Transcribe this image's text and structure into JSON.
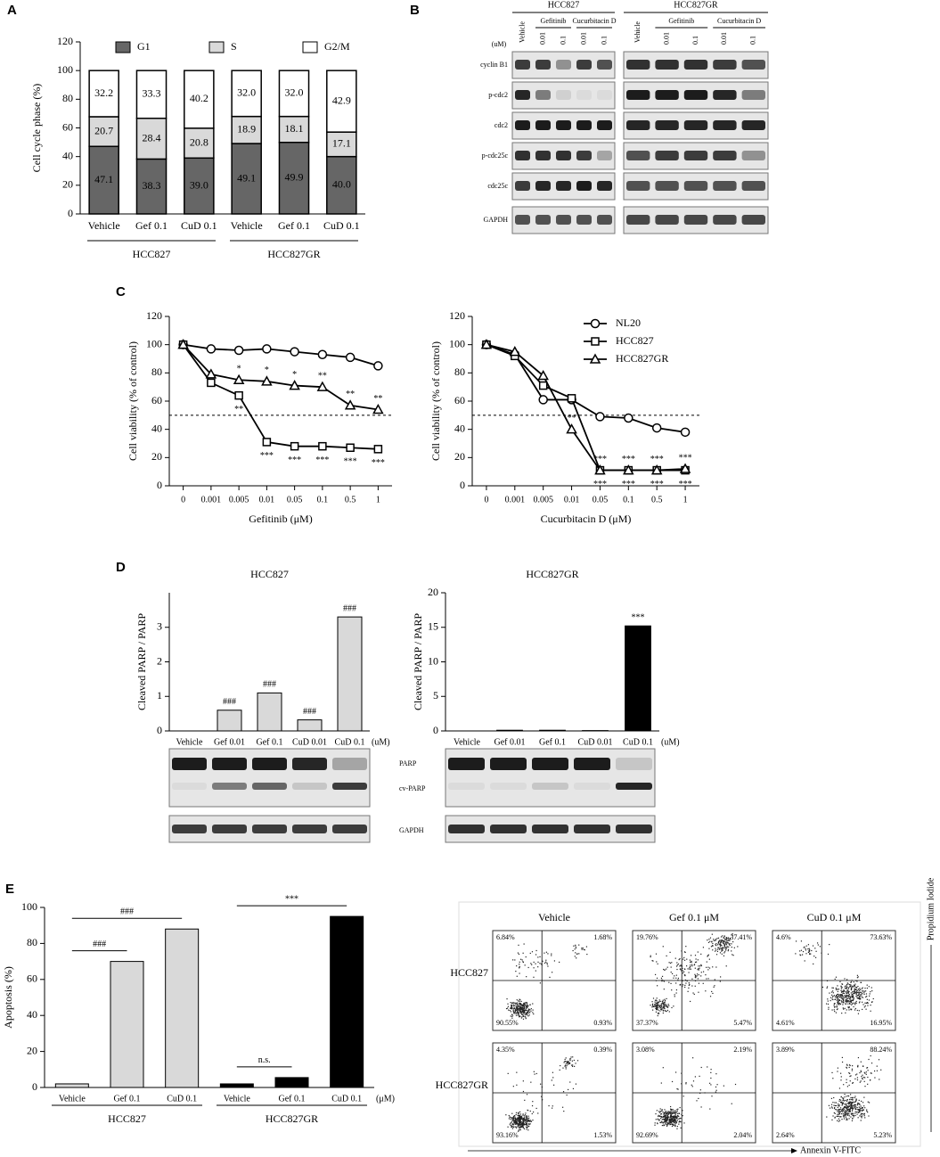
{
  "panels": [
    "A",
    "B",
    "C",
    "D",
    "E"
  ],
  "chart_data": [
    {
      "type": "stacked_bar",
      "ylabel": "Cell cycle phase (%)",
      "categories": [
        "Vehicle",
        "Gef 0.1",
        "CuD 0.1",
        "Vehicle",
        "Gef 0.1",
        "CuD 0.1"
      ],
      "groups": [
        "HCC827",
        "HCC827GR"
      ],
      "ylim": [
        0,
        120
      ],
      "yticks": [
        0,
        20,
        40,
        60,
        80,
        100,
        120
      ],
      "legend": "top",
      "series": [
        {
          "name": "G1",
          "color": "#666666",
          "values": [
            47.1,
            38.3,
            39.0,
            49.1,
            49.9,
            40.0
          ],
          "value_labels": [
            "47.1",
            "38.3",
            "39.0",
            "49.1",
            "49.9",
            "40.0"
          ]
        },
        {
          "name": "S",
          "color": "#d9d9d9",
          "values": [
            20.7,
            28.4,
            20.8,
            18.9,
            18.1,
            17.1
          ],
          "value_labels": [
            "20.7",
            "28.4",
            "20.8",
            "18.9",
            "18.1",
            "17.1"
          ]
        },
        {
          "name": "G2/M",
          "color": "#ffffff",
          "values": [
            32.2,
            33.3,
            40.2,
            32.0,
            32.0,
            42.9
          ],
          "value_labels": [
            "32.2",
            "33.3",
            "40.2",
            "32.0",
            "32.0",
            "42.9"
          ]
        }
      ]
    },
    {
      "type": "line",
      "xlabel": "Gefitinib (μM)",
      "ylabel": "Cell viability (% of control)",
      "categories": [
        "0",
        "0.001",
        "0.005",
        "0.01",
        "0.05",
        "0.1",
        "0.5",
        "1"
      ],
      "ylim": [
        0,
        120
      ],
      "yticks": [
        0,
        20,
        40,
        60,
        80,
        100,
        120
      ],
      "reference_line": 50,
      "series": [
        {
          "marker": "circle",
          "values": [
            100,
            97,
            96,
            97,
            95,
            93,
            91,
            85
          ],
          "annotations": [
            null,
            null,
            null,
            null,
            null,
            null,
            null,
            null
          ]
        },
        {
          "marker": "square",
          "values": [
            100,
            73,
            64,
            31,
            28,
            28,
            27,
            26
          ],
          "annotations": [
            null,
            null,
            "**",
            "***",
            "***",
            "***",
            "***",
            "***"
          ]
        },
        {
          "marker": "triangle",
          "values": [
            100,
            79,
            75,
            74,
            71,
            70,
            57,
            54
          ],
          "annotations": [
            null,
            null,
            "*",
            "*",
            "*",
            "**",
            "**",
            "**"
          ]
        }
      ]
    },
    {
      "type": "line",
      "xlabel": "Cucurbitacin D (μM)",
      "ylabel": "Cell viability (% of control)",
      "categories": [
        "0",
        "0.001",
        "0.005",
        "0.01",
        "0.05",
        "0.1",
        "0.5",
        "1"
      ],
      "ylim": [
        0,
        120
      ],
      "yticks": [
        0,
        20,
        40,
        60,
        80,
        100,
        120
      ],
      "reference_line": 50,
      "legend": "upper right",
      "series": [
        {
          "name": "NL20",
          "marker": "circle",
          "values": [
            100,
            93,
            61,
            61,
            49,
            48,
            41,
            38
          ],
          "annotations": [
            null,
            null,
            null,
            null,
            null,
            null,
            null,
            null
          ]
        },
        {
          "name": "HCC827",
          "marker": "square",
          "values": [
            100,
            92,
            71,
            62,
            11,
            11,
            11,
            11
          ],
          "annotations": [
            null,
            null,
            null,
            null,
            "***",
            "***",
            "***",
            "***"
          ]
        },
        {
          "name": "HCC827GR",
          "marker": "triangle",
          "values": [
            100,
            95,
            78,
            40,
            11,
            11,
            11,
            12
          ],
          "annotations": [
            null,
            null,
            null,
            "**",
            "***",
            "***",
            "***",
            "***"
          ]
        }
      ]
    },
    {
      "type": "bar",
      "title": "HCC827",
      "ylabel": "Cleaved PARP / PARP",
      "unit": "(uM)",
      "categories": [
        "Vehicle",
        "Gef 0.01",
        "Gef 0.1",
        "CuD 0.01",
        "CuD 0.1"
      ],
      "values": [
        0,
        0.6,
        1.1,
        0.32,
        3.3
      ],
      "colors": [
        "#d9d9d9",
        "#d9d9d9",
        "#d9d9d9",
        "#d9d9d9",
        "#d9d9d9"
      ],
      "annotations": [
        null,
        "###",
        "###",
        "###",
        "###"
      ],
      "ylim": [
        0,
        4
      ],
      "yticks": [
        0,
        1,
        2,
        3
      ]
    },
    {
      "type": "bar",
      "title": "HCC827GR",
      "ylabel": "Cleaved PARP / PARP",
      "unit": "(uM)",
      "categories": [
        "Vehicle",
        "Gef 0.01",
        "Gef 0.1",
        "CuD 0.01",
        "CuD 0.1"
      ],
      "values": [
        0,
        0.1,
        0.1,
        0.05,
        15.2
      ],
      "colors": [
        "#d9d9d9",
        "#d9d9d9",
        "#d9d9d9",
        "#d9d9d9",
        "#000000"
      ],
      "annotations": [
        null,
        null,
        null,
        null,
        "***"
      ],
      "ylim": [
        0,
        20
      ],
      "yticks": [
        0,
        5,
        10,
        15,
        20
      ]
    },
    {
      "type": "bar",
      "ylabel": "Apoptosis (%)",
      "unit": "(μM)",
      "categories": [
        "Vehicle",
        "Gef 0.1",
        "CuD 0.1",
        "Vehicle",
        "Gef 0.1",
        "CuD 0.1"
      ],
      "groups": [
        "HCC827",
        "HCC827GR"
      ],
      "values": [
        2,
        70,
        88,
        2,
        5.5,
        95
      ],
      "colors": [
        "#d9d9d9",
        "#d9d9d9",
        "#d9d9d9",
        "#000000",
        "#000000",
        "#000000"
      ],
      "brackets": [
        {
          "from": 0,
          "to": 1,
          "label": "###"
        },
        {
          "from": 0,
          "to": 2,
          "label": "###"
        },
        {
          "from": 3,
          "to": 5,
          "label": "***"
        },
        {
          "from": 3,
          "to": 4,
          "label": "n.s."
        }
      ],
      "ylim": [
        0,
        100
      ],
      "yticks": [
        0,
        20,
        40,
        60,
        80,
        100
      ]
    }
  ],
  "blot_b": {
    "cell_lines": [
      "HCC827",
      "HCC827GR"
    ],
    "unit": "(uM)",
    "treatments": [
      "Vehicle",
      "Gefitinib",
      "Cucurbitacin D"
    ],
    "doses": [
      "0.01",
      "0.1"
    ],
    "rows": [
      "cyclin B1",
      "p-cdc2",
      "cdc2",
      "p-cdc25c",
      "cdc25c",
      "GAPDH"
    ]
  },
  "blot_d": {
    "rows": [
      "PARP",
      "cv-PARP",
      "GAPDH"
    ]
  },
  "flow_e": {
    "columns": [
      "Vehicle",
      "Gef 0.1 μM",
      "CuD 0.1 μM"
    ],
    "rows": [
      "HCC827",
      "HCC827GR"
    ],
    "x_label": "Annexin V-FITC",
    "y_label": "Propidium Iodide",
    "quadrants": [
      [
        [
          "6.84%",
          "1.68%",
          "90.55%",
          "0.93%"
        ],
        [
          "19.76%",
          "37.41%",
          "37.37%",
          "5.47%"
        ],
        [
          "4.6%",
          "73.63%",
          "4.61%",
          "16.95%"
        ]
      ],
      [
        [
          "4.35%",
          "0.39%",
          "93.16%",
          "1.53%"
        ],
        [
          "3.08%",
          "2.19%",
          "92.69%",
          "2.04%"
        ],
        [
          "3.89%",
          "88.24%",
          "2.64%",
          "5.23%"
        ]
      ]
    ]
  }
}
